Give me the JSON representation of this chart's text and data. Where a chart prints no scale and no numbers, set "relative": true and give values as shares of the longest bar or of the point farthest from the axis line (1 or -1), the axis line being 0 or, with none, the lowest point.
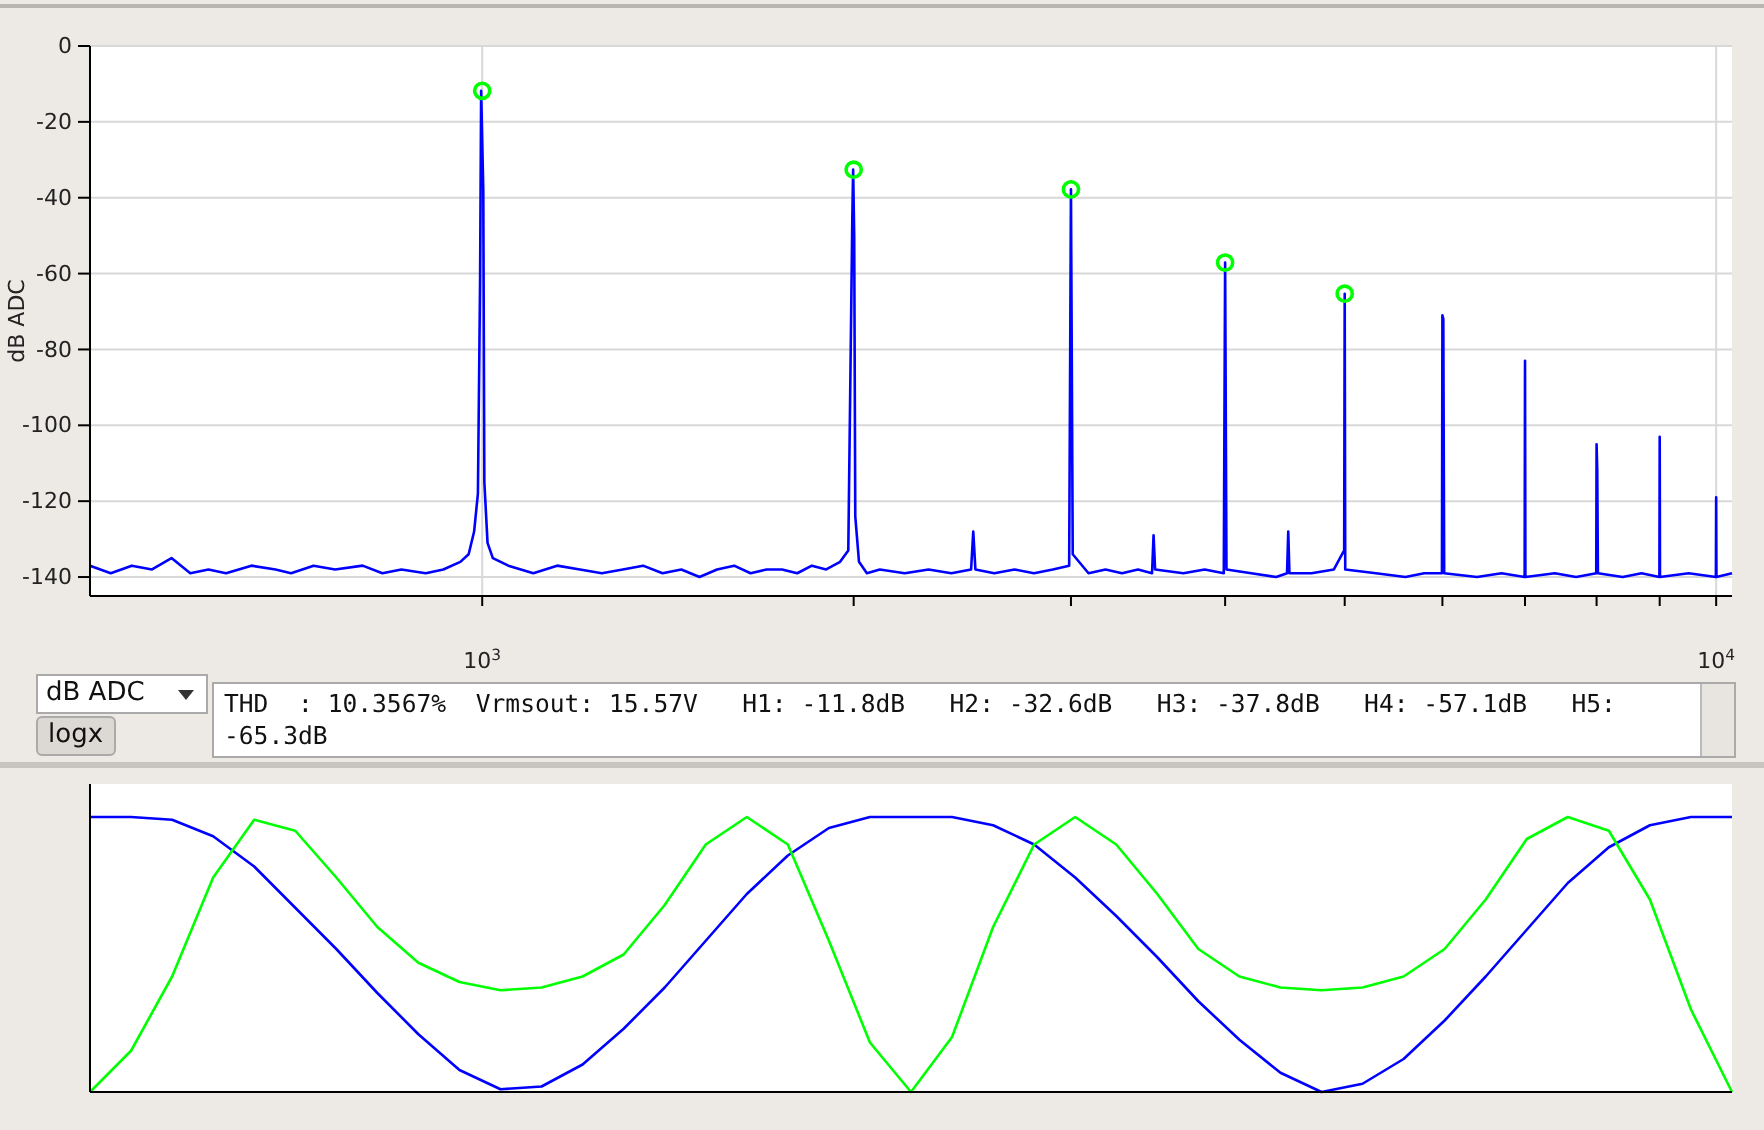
{
  "chart_data": [
    {
      "type": "line",
      "ylabel": "dB ADC",
      "log": "x",
      "xlim": [
        481,
        10300
      ],
      "ylim": [
        -145,
        0
      ],
      "xticks": [
        {
          "value": 1000,
          "label": "10$^{3}$"
        },
        {
          "value": 2000,
          "label": null
        },
        {
          "value": 3000,
          "label": null
        },
        {
          "value": 4000,
          "label": null
        },
        {
          "value": 5000,
          "label": null
        },
        {
          "value": 6000,
          "label": null
        },
        {
          "value": 7000,
          "label": null
        },
        {
          "value": 8000,
          "label": null
        },
        {
          "value": 9000,
          "label": null
        },
        {
          "value": 10000,
          "label": "10$^{4}$"
        }
      ],
      "yticks": [
        0,
        -20,
        -40,
        -60,
        -80,
        -100,
        -120,
        -140
      ],
      "grid": true,
      "series": [
        {
          "color": "#0000ff",
          "x": [
            481,
            500,
            520,
            540,
            560,
            580,
            600,
            620,
            650,
            680,
            700,
            730,
            760,
            800,
            830,
            860,
            900,
            930,
            960,
            975,
            985,
            992,
            996,
            998,
            1002,
            1004,
            1010,
            1020,
            1050,
            1100,
            1150,
            1200,
            1250,
            1300,
            1350,
            1400,
            1450,
            1500,
            1550,
            1600,
            1650,
            1700,
            1750,
            1800,
            1850,
            1900,
            1950,
            1980,
            1995,
            1998,
            2002,
            2006,
            2020,
            2050,
            2100,
            2200,
            2300,
            2400,
            2490,
            2500,
            2510,
            2600,
            2700,
            2800,
            2900,
            2990,
            3000,
            3010,
            3100,
            3200,
            3300,
            3400,
            3490,
            3500,
            3510,
            3700,
            3850,
            3990,
            4000,
            4010,
            4200,
            4400,
            4490,
            4500,
            4510,
            4700,
            4900,
            4995,
            5000,
            5005,
            5300,
            5600,
            5800,
            5995,
            6000,
            6010,
            6020,
            6400,
            6700,
            6995,
            7000,
            7005,
            7400,
            7700,
            7995,
            8000,
            8010,
            8020,
            8400,
            8700,
            8995,
            9000,
            9005,
            9500,
            9995,
            10000,
            10005,
            10300
          ],
          "values": [
            -137,
            -139,
            -137,
            -138,
            -135,
            -139,
            -138,
            -139,
            -137,
            -138,
            -139,
            -137,
            -138,
            -137,
            -139,
            -138,
            -139,
            -138,
            -136,
            -134,
            -128,
            -118,
            -62,
            -11.8,
            -38,
            -115,
            -131,
            -135,
            -137,
            -139,
            -137,
            -138,
            -139,
            -138,
            -137,
            -139,
            -138,
            -140,
            -138,
            -137,
            -139,
            -138,
            -138,
            -139,
            -137,
            -138,
            -136,
            -133,
            -45,
            -32.6,
            -50,
            -124,
            -136,
            -139,
            -138,
            -139,
            -138,
            -139,
            -138,
            -128,
            -138,
            -139,
            -138,
            -139,
            -138,
            -137,
            -37.8,
            -134,
            -139,
            -138,
            -139,
            -138,
            -139,
            -129,
            -138,
            -139,
            -138,
            -139,
            -57.1,
            -138,
            -139,
            -140,
            -139,
            -128,
            -139,
            -139,
            -138,
            -133,
            -65.3,
            -138,
            -139,
            -140,
            -139,
            -139,
            -71,
            -72,
            -139,
            -140,
            -139,
            -140,
            -83,
            -140,
            -139,
            -140,
            -139,
            -105,
            -112,
            -139,
            -140,
            -139,
            -140,
            -103,
            -140,
            -139,
            -140,
            -119,
            -140,
            -139
          ]
        },
        {
          "type": "scatter",
          "marker": "circle",
          "color": "#00ff00",
          "x": [
            1000,
            2000,
            3000,
            4000,
            5000
          ],
          "values": [
            -11.8,
            -32.6,
            -37.8,
            -57.1,
            -65.3
          ]
        }
      ],
      "annotations": [
        "dB ADC",
        "logx",
        "THD  : 10.3567%  Vrmsout: 15.57V   H1: -11.8dB   H2: -32.6dB   H3: -37.8dB   H4: -57.1dB   H5: -65.3dB"
      ]
    },
    {
      "type": "line",
      "relative": true,
      "categories": [
        null,
        null,
        null,
        null,
        null,
        null,
        null,
        null,
        null,
        null,
        null,
        null,
        null,
        null,
        null,
        null,
        null,
        null,
        null,
        null,
        null,
        null,
        null,
        null,
        null,
        null,
        null,
        null,
        null,
        null,
        null,
        null,
        null,
        null,
        null,
        null,
        null,
        null,
        null,
        null,
        null
      ],
      "series": [
        {
          "color": "#0000ff",
          "values": [
            1.0,
            1.0,
            0.99,
            0.93,
            0.82,
            0.67,
            0.52,
            0.36,
            0.21,
            0.08,
            0.01,
            0.02,
            0.1,
            0.23,
            0.38,
            0.55,
            0.72,
            0.86,
            0.96,
            1.0,
            1.0,
            1.0,
            0.97,
            0.9,
            0.78,
            0.64,
            0.49,
            0.33,
            0.19,
            0.07,
            0.0,
            0.03,
            0.12,
            0.26,
            0.42,
            0.59,
            0.76,
            0.89,
            0.97,
            1.0,
            1.0
          ]
        },
        {
          "color": "#00ff00",
          "values": [
            0,
            0.15,
            0.42,
            0.78,
            0.99,
            0.95,
            0.78,
            0.6,
            0.47,
            0.4,
            0.37,
            0.38,
            0.42,
            0.5,
            0.68,
            0.9,
            1.0,
            0.9,
            0.55,
            0.18,
            0.0,
            0.2,
            0.6,
            0.9,
            1.0,
            0.9,
            0.72,
            0.52,
            0.42,
            0.38,
            0.37,
            0.38,
            0.42,
            0.52,
            0.7,
            0.92,
            1.0,
            0.95,
            0.7,
            0.3,
            0.0
          ]
        }
      ]
    }
  ]
}
